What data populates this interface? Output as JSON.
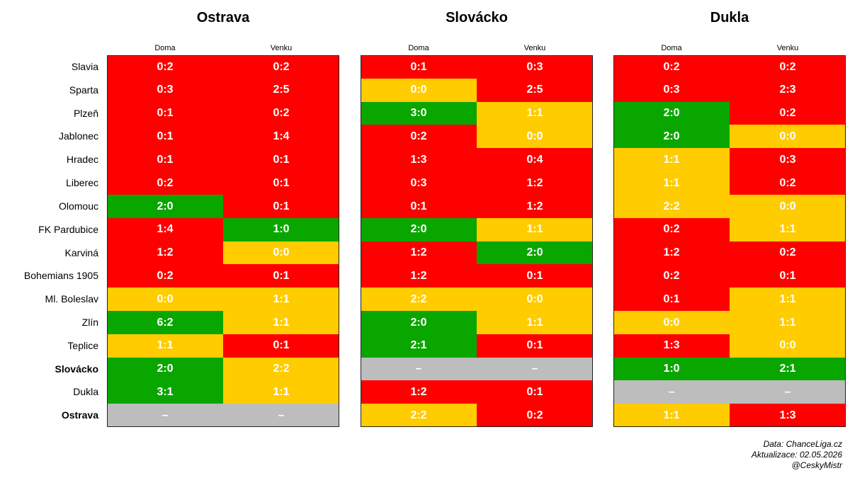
{
  "chart_data": {
    "type": "table",
    "rows": [
      "Slavia",
      "Sparta",
      "Plzeň",
      "Jablonec",
      "Hradec",
      "Liberec",
      "Olomouc",
      "FK Pardubice",
      "Karviná",
      "Bohemians 1905",
      "Ml. Boleslav",
      "Zlín",
      "Teplice",
      "Slovácko",
      "Dukla",
      "Ostrava"
    ],
    "bold_rows": [
      "Slovácko",
      "Ostrava"
    ],
    "columns": [
      "Doma",
      "Venku"
    ],
    "colors": {
      "W": "#0aa600",
      "D": "#ffcc00",
      "L": "#ff0000",
      "N": "#bdbdbd"
    },
    "panels": [
      {
        "title": "Ostrava",
        "doma": [
          "0:2",
          "0:3",
          "0:1",
          "0:1",
          "0:1",
          "0:2",
          "2:0",
          "1:4",
          "1:2",
          "0:2",
          "0:0",
          "6:2",
          "1:1",
          "2:0",
          "3:1",
          "–"
        ],
        "venku": [
          "0:2",
          "2:5",
          "0:2",
          "1:4",
          "0:1",
          "0:1",
          "0:1",
          "1:0",
          "0:0",
          "0:1",
          "1:1",
          "1:1",
          "0:1",
          "2:2",
          "1:1",
          "–"
        ]
      },
      {
        "title": "Slovácko",
        "doma": [
          "0:1",
          "0:0",
          "3:0",
          "0:2",
          "1:3",
          "0:3",
          "0:1",
          "2:0",
          "1:2",
          "1:2",
          "2:2",
          "2:0",
          "2:1",
          "–",
          "1:2",
          "2:2"
        ],
        "venku": [
          "0:3",
          "2:5",
          "1:1",
          "0:0",
          "0:4",
          "1:2",
          "1:2",
          "1:1",
          "2:0",
          "0:1",
          "0:0",
          "1:1",
          "0:1",
          "–",
          "0:1",
          "0:2"
        ]
      },
      {
        "title": "Dukla",
        "doma": [
          "0:2",
          "0:3",
          "2:0",
          "2:0",
          "1:1",
          "1:1",
          "2:2",
          "0:2",
          "1:2",
          "0:2",
          "0:1",
          "0:0",
          "1:3",
          "1:0",
          "–",
          "1:1"
        ],
        "venku": [
          "0:2",
          "2:3",
          "0:2",
          "0:0",
          "0:3",
          "0:2",
          "0:0",
          "1:1",
          "0:2",
          "0:1",
          "1:1",
          "1:1",
          "0:0",
          "2:1",
          "–",
          "1:3"
        ]
      }
    ]
  },
  "footer": {
    "source": "Data: ChanceLiga.cz",
    "updated": "Aktualizace:  02.05.2026",
    "author": "@CeskyMistr"
  }
}
